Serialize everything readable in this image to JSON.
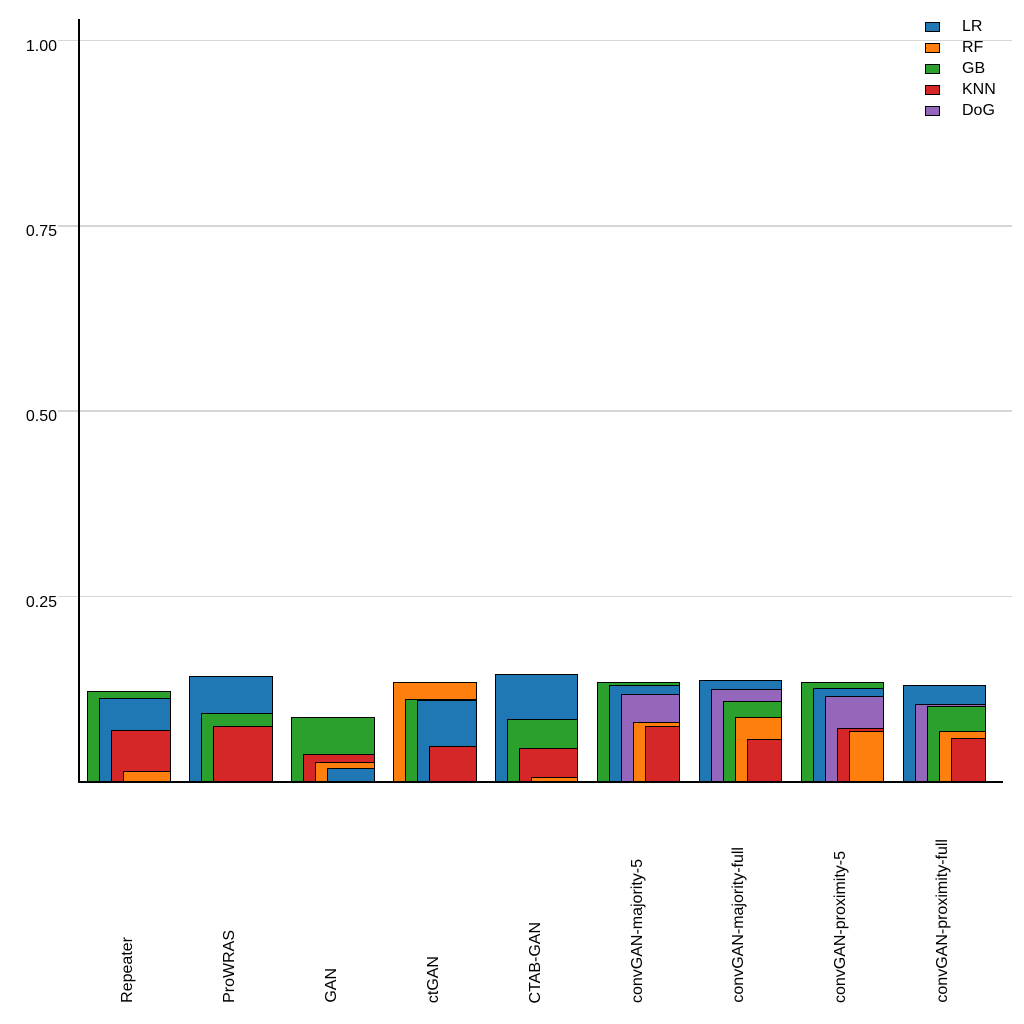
{
  "chart_data": {
    "type": "bar",
    "variant": "overlapping-layered-bars (widest = largest value, narrower bars drawn in front, right-aligned per group)",
    "title": "",
    "xlabel": "",
    "ylabel": "",
    "categories": [
      "Repeater",
      "ProWRAS",
      "GAN",
      "ctGAN",
      "CTAB-GAN",
      "convGAN-majority-5",
      "convGAN-majority-full",
      "convGAN-proximity-5",
      "convGAN-proximity-full"
    ],
    "series": [
      {
        "name": "LR",
        "color": "#1f77b4",
        "values": [
          0.112,
          0.142,
          0.017,
          0.109,
          0.144,
          0.129,
          0.136,
          0.125,
          0.13
        ]
      },
      {
        "name": "RF",
        "color": "#ff7f0e",
        "values": [
          0.014,
          0.0,
          0.026,
          0.133,
          0.006,
          0.079,
          0.086,
          0.067,
          0.068
        ]
      },
      {
        "name": "GB",
        "color": "#2ca02c",
        "values": [
          0.122,
          0.092,
          0.087,
          0.111,
          0.084,
          0.134,
          0.108,
          0.133,
          0.101
        ]
      },
      {
        "name": "KNN",
        "color": "#d62728",
        "values": [
          0.069,
          0.074,
          0.037,
          0.047,
          0.045,
          0.074,
          0.057,
          0.072,
          0.058
        ]
      },
      {
        "name": "DoG",
        "color": "#9467bd",
        "values": [
          0.0,
          0.0,
          0.0,
          0.0,
          0.0,
          0.118,
          0.124,
          0.115,
          0.104
        ]
      }
    ],
    "yticks": [
      0.25,
      0.5,
      0.75,
      1.0
    ],
    "ytick_labels": [
      "0.25",
      "0.50",
      "0.75",
      "1.00"
    ],
    "ylim": [
      0,
      1.03
    ],
    "grid": "horizontal",
    "grid_color": "#d6d6d6",
    "legend_position": "upper-right",
    "legend_entries": [
      "LR",
      "RF",
      "GB",
      "KNN",
      "DoG"
    ]
  }
}
